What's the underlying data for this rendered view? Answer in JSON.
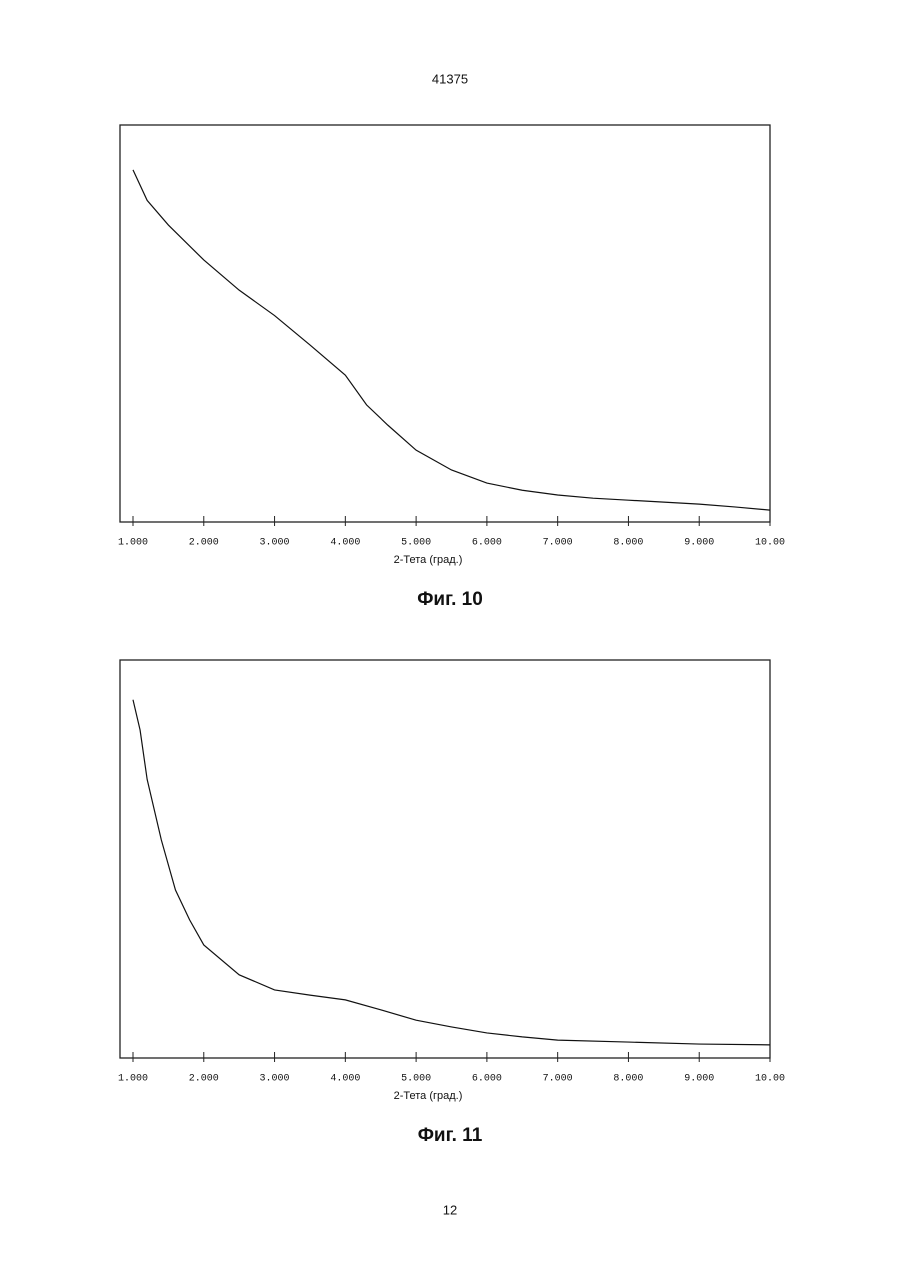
{
  "header": "41375",
  "footer": "12",
  "chart_data": [
    {
      "type": "line",
      "caption": "Фиг. 10",
      "xlabel": "2-Тета (град.)",
      "xlim": [
        1,
        10
      ],
      "ylim": [
        0,
        100
      ],
      "xticks": [
        {
          "value": 1,
          "label": "1.000"
        },
        {
          "value": 2,
          "label": "2.000"
        },
        {
          "value": 3,
          "label": "3.000"
        },
        {
          "value": 4,
          "label": "4.000"
        },
        {
          "value": 5,
          "label": "5.000"
        },
        {
          "value": 6,
          "label": "6.000"
        },
        {
          "value": 7,
          "label": "7.000"
        },
        {
          "value": 8,
          "label": "8.000"
        },
        {
          "value": 9,
          "label": "9.000"
        },
        {
          "value": 10,
          "label": "10.00"
        }
      ],
      "color": "#111111",
      "x": [
        1.0,
        1.2,
        1.5,
        2.0,
        2.5,
        3.0,
        3.5,
        4.0,
        4.3,
        4.6,
        5.0,
        5.5,
        6.0,
        6.5,
        7.0,
        7.5,
        8.0,
        8.5,
        9.0,
        9.5,
        10.0
      ],
      "values": [
        88.7,
        81,
        74.8,
        66,
        58.4,
        52,
        44.6,
        37,
        29.5,
        24.4,
        18.1,
        13.1,
        9.8,
        8,
        6.8,
        6,
        5.5,
        5,
        4.5,
        3.8,
        3
      ]
    },
    {
      "type": "line",
      "caption": "Фиг. 11",
      "xlabel": "2-Тета (град.)",
      "xlim": [
        1,
        10
      ],
      "ylim": [
        0,
        100
      ],
      "xticks": [
        {
          "value": 1,
          "label": "1.000"
        },
        {
          "value": 2,
          "label": "2.000"
        },
        {
          "value": 3,
          "label": "3.000"
        },
        {
          "value": 4,
          "label": "4.000"
        },
        {
          "value": 5,
          "label": "5.000"
        },
        {
          "value": 6,
          "label": "6.000"
        },
        {
          "value": 7,
          "label": "7.000"
        },
        {
          "value": 8,
          "label": "8.000"
        },
        {
          "value": 9,
          "label": "9.000"
        },
        {
          "value": 10,
          "label": "10.00"
        }
      ],
      "color": "#111111",
      "x": [
        1.0,
        1.1,
        1.2,
        1.4,
        1.6,
        1.8,
        2.0,
        2.5,
        3.0,
        3.5,
        4.0,
        4.5,
        5.0,
        5.5,
        6.0,
        6.5,
        7.0,
        8.0,
        9.0,
        10.0
      ],
      "values": [
        90,
        82.4,
        70,
        54.8,
        42.2,
        34.7,
        28.4,
        20.9,
        17.1,
        15.8,
        14.6,
        12.1,
        9.5,
        7.8,
        6.3,
        5.3,
        4.5,
        4,
        3.5,
        3.3
      ]
    }
  ]
}
